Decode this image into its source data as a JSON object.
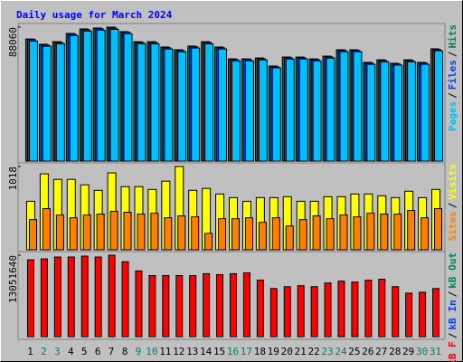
{
  "title": "Daily usage for March 2024",
  "legend_separator": "/",
  "chart_data": [
    {
      "type": "bar",
      "ylim": [
        0,
        88060
      ],
      "yticks": [
        88060
      ],
      "series": [
        {
          "name": "Hits",
          "color": "#00805c",
          "values": [
            80300,
            76800,
            78500,
            83900,
            86900,
            87500,
            88060,
            85100,
            78500,
            78500,
            75000,
            73200,
            75600,
            78500,
            75000,
            67200,
            67200,
            67800,
            62500,
            68400,
            68400,
            67200,
            69000,
            73200,
            73200,
            64900,
            66600,
            64300,
            66600,
            64900,
            73800
          ]
        },
        {
          "name": "Files",
          "color": "#0040ff",
          "values": [
            79800,
            76300,
            78000,
            83400,
            86400,
            87000,
            87500,
            84600,
            78000,
            78000,
            74500,
            72700,
            75100,
            78000,
            74500,
            66700,
            66700,
            67300,
            62000,
            67900,
            67900,
            66700,
            68500,
            72700,
            72700,
            64400,
            66100,
            63800,
            66100,
            64400,
            73300
          ]
        },
        {
          "name": "Pages",
          "color": "#00c0ff",
          "values": [
            78900,
            75500,
            77200,
            82500,
            85500,
            86100,
            86600,
            83700,
            77200,
            77100,
            73700,
            71900,
            74300,
            77100,
            73700,
            65900,
            65900,
            66500,
            61300,
            67100,
            67100,
            65900,
            67700,
            71900,
            71900,
            63600,
            65300,
            63100,
            65300,
            63600,
            72500
          ]
        }
      ]
    },
    {
      "type": "bar",
      "ylim": [
        0,
        1018
      ],
      "yticks": [
        1018
      ],
      "series": [
        {
          "name": "Visits",
          "color": "#ffff00",
          "values": [
            593,
            928,
            861,
            861,
            794,
            727,
            940,
            772,
            772,
            738,
            839,
            1018,
            727,
            750,
            682,
            638,
            593,
            638,
            638,
            649,
            593,
            593,
            649,
            649,
            682,
            682,
            660,
            638,
            716,
            638,
            738
          ]
        },
        {
          "name": "Sites",
          "color": "#ff8000",
          "values": [
            369,
            503,
            425,
            391,
            425,
            436,
            470,
            459,
            436,
            447,
            391,
            414,
            403,
            201,
            380,
            380,
            391,
            336,
            391,
            291,
            369,
            414,
            380,
            425,
            403,
            447,
            436,
            436,
            481,
            391,
            503
          ]
        }
      ]
    },
    {
      "type": "bar",
      "ylim": [
        0,
        13051640
      ],
      "yticks": [
        13051640
      ],
      "categories": [
        "1",
        "2",
        "3",
        "4",
        "5",
        "6",
        "7",
        "8",
        "9",
        "10",
        "11",
        "12",
        "13",
        "14",
        "15",
        "16",
        "17",
        "18",
        "19",
        "20",
        "21",
        "22",
        "23",
        "24",
        "25",
        "26",
        "27",
        "28",
        "29",
        "30",
        "31"
      ],
      "category_colors": [
        "#000000",
        "#00805c",
        "#00805c",
        "#000000",
        "#000000",
        "#000000",
        "#000000",
        "#000000",
        "#00805c",
        "#00805c",
        "#000000",
        "#000000",
        "#000000",
        "#000000",
        "#000000",
        "#00805c",
        "#00805c",
        "#000000",
        "#000000",
        "#000000",
        "#000000",
        "#000000",
        "#00805c",
        "#00805c",
        "#000000",
        "#000000",
        "#000000",
        "#000000",
        "#000000",
        "#00805c",
        "#00805c"
      ],
      "series": [
        {
          "name": "kB F",
          "color": "#ff0000",
          "values": [
            12310000,
            12460000,
            12760000,
            12760000,
            12900000,
            12760000,
            13051640,
            12010000,
            10530000,
            9790000,
            9790000,
            9790000,
            9790000,
            10090000,
            9940000,
            10090000,
            10230000,
            9050000,
            7710000,
            8010000,
            8160000,
            8010000,
            8600000,
            8900000,
            8750000,
            9050000,
            9200000,
            8010000,
            6970000,
            7120000,
            7710000
          ]
        }
      ],
      "legend_labels": [
        {
          "text": "kB In",
          "color": "#0040ff"
        },
        {
          "text": "kB Out",
          "color": "#00805c"
        }
      ]
    }
  ]
}
